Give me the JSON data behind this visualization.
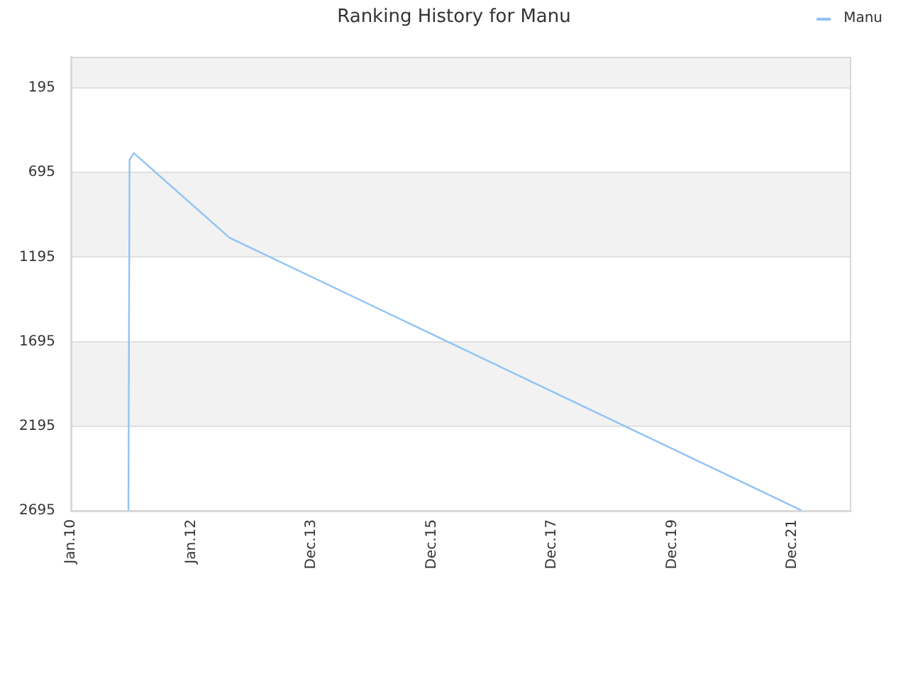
{
  "chart_data": {
    "type": "line",
    "title": "Ranking History for Manu",
    "x": [
      "2010-12-17",
      "2010-12-24",
      "2011-01-05",
      "2011-01-19",
      "2012-08-20",
      "2015-12-27",
      "2022-02-07"
    ],
    "series": [
      {
        "name": "Manu",
        "color": "#90c3f5",
        "values": [
          2690,
          620,
          600,
          580,
          1080,
          1650,
          2690
        ]
      }
    ],
    "xlim": [
      "2010-01-03",
      "2022-12-11"
    ],
    "xticks": [
      {
        "value": "2010-01-03",
        "label": "Jan.10"
      },
      {
        "value": "2012-01-01",
        "label": "Jan.12"
      },
      {
        "value": "2013-12-29",
        "label": "Dec.13"
      },
      {
        "value": "2015-12-27",
        "label": "Dec.15"
      },
      {
        "value": "2017-12-24",
        "label": "Dec.17"
      },
      {
        "value": "2019-12-22",
        "label": "Dec.19"
      },
      {
        "value": "2021-12-19",
        "label": "Dec.21"
      }
    ],
    "ylim": [
      2695,
      10
    ],
    "yticks": [
      195,
      695,
      1195,
      1695,
      2195,
      2695
    ],
    "grid": "y",
    "legend": "top right"
  }
}
